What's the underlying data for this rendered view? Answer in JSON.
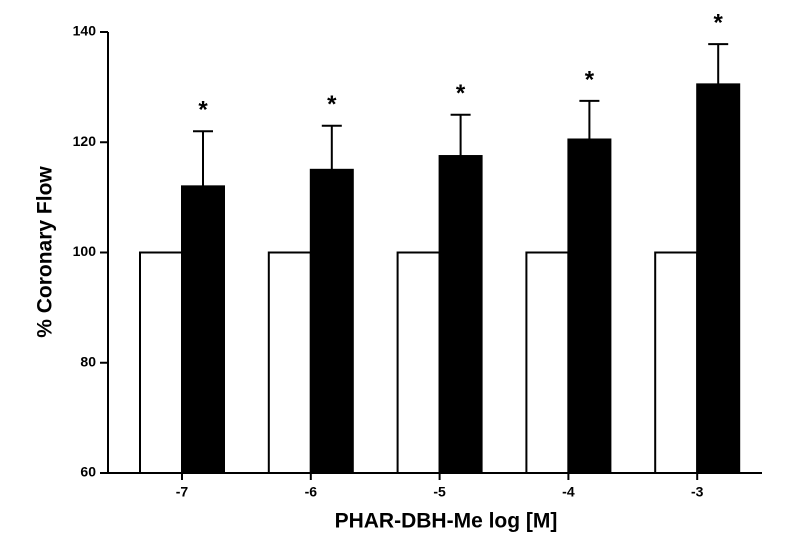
{
  "chart_data": {
    "type": "bar",
    "x_label": "PHAR-DBH-Me log [M]",
    "y_label": "% Coronary  Flow",
    "categories": [
      "-7",
      "-6",
      "-5",
      "-4",
      "-3"
    ],
    "series": [
      {
        "color": "#ffffff",
        "values": [
          100,
          100,
          100,
          100,
          100
        ]
      },
      {
        "color": "#000000",
        "values": [
          112,
          115,
          117.5,
          120.5,
          130.5
        ],
        "errors": [
          10,
          8,
          7.5,
          7,
          7.3
        ]
      }
    ],
    "annotations": [
      "*",
      "*",
      "*",
      "*",
      "*"
    ],
    "ylim": [
      60,
      140
    ],
    "yticks": [
      60,
      80,
      100,
      120,
      140
    ],
    "grid": false
  }
}
